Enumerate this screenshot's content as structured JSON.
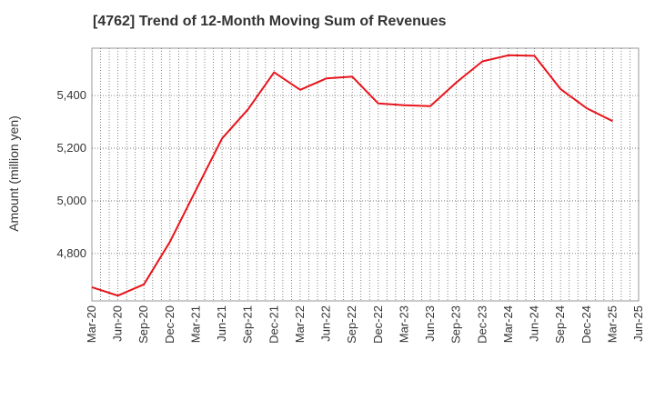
{
  "chart_data": {
    "type": "line",
    "title": "[4762]  Trend of 12-Month Moving Sum of Revenues",
    "xlabel": "",
    "ylabel": "Amount (million yen)",
    "x_tick_labels": [
      "Mar-20",
      "Jun-20",
      "Sep-20",
      "Dec-20",
      "Mar-21",
      "Jun-21",
      "Sep-21",
      "Dec-21",
      "Mar-22",
      "Jun-22",
      "Sep-22",
      "Dec-22",
      "Mar-23",
      "Jun-23",
      "Sep-23",
      "Dec-23",
      "Mar-24",
      "Jun-24",
      "Sep-24",
      "Dec-24",
      "Mar-25",
      "Jun-25"
    ],
    "y_ticks": [
      4800,
      5000,
      5200,
      5400
    ],
    "y_tick_labels": [
      "4,800",
      "5,000",
      "5,200",
      "5,400"
    ],
    "ylim": [
      4620,
      5580
    ],
    "grid": true,
    "series": [
      {
        "color": "#e8141b",
        "x": [
          "Mar-20",
          "Jun-20",
          "Sep-20",
          "Dec-20",
          "Mar-21",
          "Jun-21",
          "Sep-21",
          "Dec-21",
          "Mar-22",
          "Jun-22",
          "Sep-22",
          "Dec-22",
          "Mar-23",
          "Jun-23",
          "Sep-23",
          "Dec-23",
          "Mar-24",
          "Jun-24",
          "Sep-24",
          "Dec-24",
          "Mar-25"
        ],
        "values": [
          4672,
          4640,
          4683,
          4845,
          5042,
          5237,
          5348,
          5488,
          5422,
          5465,
          5472,
          5370,
          5363,
          5360,
          5450,
          5530,
          5553,
          5551,
          5425,
          5352,
          5303
        ]
      }
    ]
  }
}
